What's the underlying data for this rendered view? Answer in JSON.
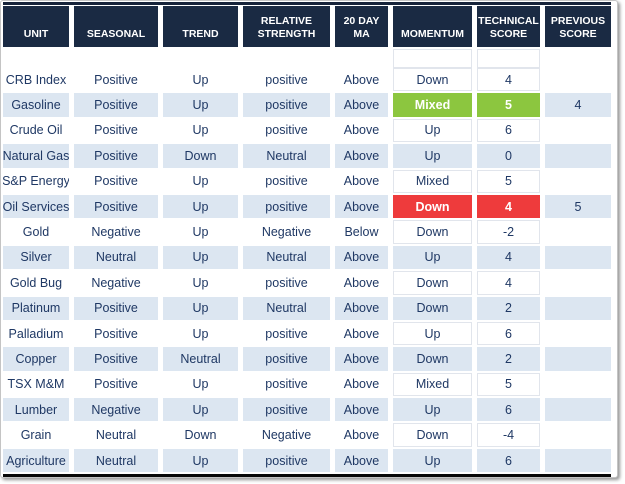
{
  "table": {
    "columns": [
      "UNIT",
      "SEASONAL",
      "TREND",
      "RELATIVE STRENGTH",
      "20 DAY MA",
      "MOMENTUM",
      "TECHNICAL SCORE",
      "PREVIOUS SCORE"
    ],
    "rows": [
      {
        "unit": "CRB Index",
        "seasonal": "Positive",
        "trend": "Up",
        "relative_strength": "positive",
        "ma_20": "Above",
        "momentum": "Down",
        "technical_score": "4",
        "previous_score": "",
        "highlight": null
      },
      {
        "unit": "Gasoline",
        "seasonal": "Positive",
        "trend": "Up",
        "relative_strength": "positive",
        "ma_20": "Above",
        "momentum": "Mixed",
        "technical_score": "5",
        "previous_score": "4",
        "highlight": "green"
      },
      {
        "unit": "Crude Oil",
        "seasonal": "Positive",
        "trend": "Up",
        "relative_strength": "positive",
        "ma_20": "Above",
        "momentum": "Up",
        "technical_score": "6",
        "previous_score": "",
        "highlight": null
      },
      {
        "unit": "Natural Gas",
        "seasonal": "Positive",
        "trend": "Down",
        "relative_strength": "Neutral",
        "ma_20": "Above",
        "momentum": "Up",
        "technical_score": "0",
        "previous_score": "",
        "highlight": null
      },
      {
        "unit": "S&P Energy",
        "seasonal": "Positive",
        "trend": "Up",
        "relative_strength": "positive",
        "ma_20": "Above",
        "momentum": "Mixed",
        "technical_score": "5",
        "previous_score": "",
        "highlight": null
      },
      {
        "unit": "Oil Services",
        "seasonal": "Positive",
        "trend": "Up",
        "relative_strength": "positive",
        "ma_20": "Above",
        "momentum": "Down",
        "technical_score": "4",
        "previous_score": "5",
        "highlight": "red"
      },
      {
        "unit": "Gold",
        "seasonal": "Negative",
        "trend": "Up",
        "relative_strength": "Negative",
        "ma_20": "Below",
        "momentum": "Down",
        "technical_score": "-2",
        "previous_score": "",
        "highlight": null
      },
      {
        "unit": "Silver",
        "seasonal": "Neutral",
        "trend": "Up",
        "relative_strength": "Neutral",
        "ma_20": "Above",
        "momentum": "Up",
        "technical_score": "4",
        "previous_score": "",
        "highlight": null
      },
      {
        "unit": "Gold Bug",
        "seasonal": "Negative",
        "trend": "Up",
        "relative_strength": "positive",
        "ma_20": "Above",
        "momentum": "Down",
        "technical_score": "4",
        "previous_score": "",
        "highlight": null
      },
      {
        "unit": "Platinum",
        "seasonal": "Positive",
        "trend": "Up",
        "relative_strength": "Neutral",
        "ma_20": "Above",
        "momentum": "Down",
        "technical_score": "2",
        "previous_score": "",
        "highlight": null
      },
      {
        "unit": "Palladium",
        "seasonal": "Positive",
        "trend": "Up",
        "relative_strength": "positive",
        "ma_20": "Above",
        "momentum": "Up",
        "technical_score": "6",
        "previous_score": "",
        "highlight": null
      },
      {
        "unit": "Copper",
        "seasonal": "Positive",
        "trend": "Neutral",
        "relative_strength": "positive",
        "ma_20": "Above",
        "momentum": "Down",
        "technical_score": "2",
        "previous_score": "",
        "highlight": null
      },
      {
        "unit": "TSX M&M",
        "seasonal": "Positive",
        "trend": "Up",
        "relative_strength": "positive",
        "ma_20": "Above",
        "momentum": "Mixed",
        "technical_score": "5",
        "previous_score": "",
        "highlight": null
      },
      {
        "unit": "Lumber",
        "seasonal": "Negative",
        "trend": "Up",
        "relative_strength": "positive",
        "ma_20": "Above",
        "momentum": "Up",
        "technical_score": "6",
        "previous_score": "",
        "highlight": null
      },
      {
        "unit": "Grain",
        "seasonal": "Neutral",
        "trend": "Down",
        "relative_strength": "Negative",
        "ma_20": "Above",
        "momentum": "Down",
        "technical_score": "-4",
        "previous_score": "",
        "highlight": null
      },
      {
        "unit": "Agriculture",
        "seasonal": "Neutral",
        "trend": "Up",
        "relative_strength": "positive",
        "ma_20": "Above",
        "momentum": "Up",
        "technical_score": "6",
        "previous_score": "",
        "highlight": null
      }
    ],
    "colors": {
      "header_bg": "#1A2A43",
      "row_alt_bg": "#DCE6F1",
      "text": "#1F3864",
      "green": "#8CC63F",
      "red": "#EE3B3C"
    }
  }
}
